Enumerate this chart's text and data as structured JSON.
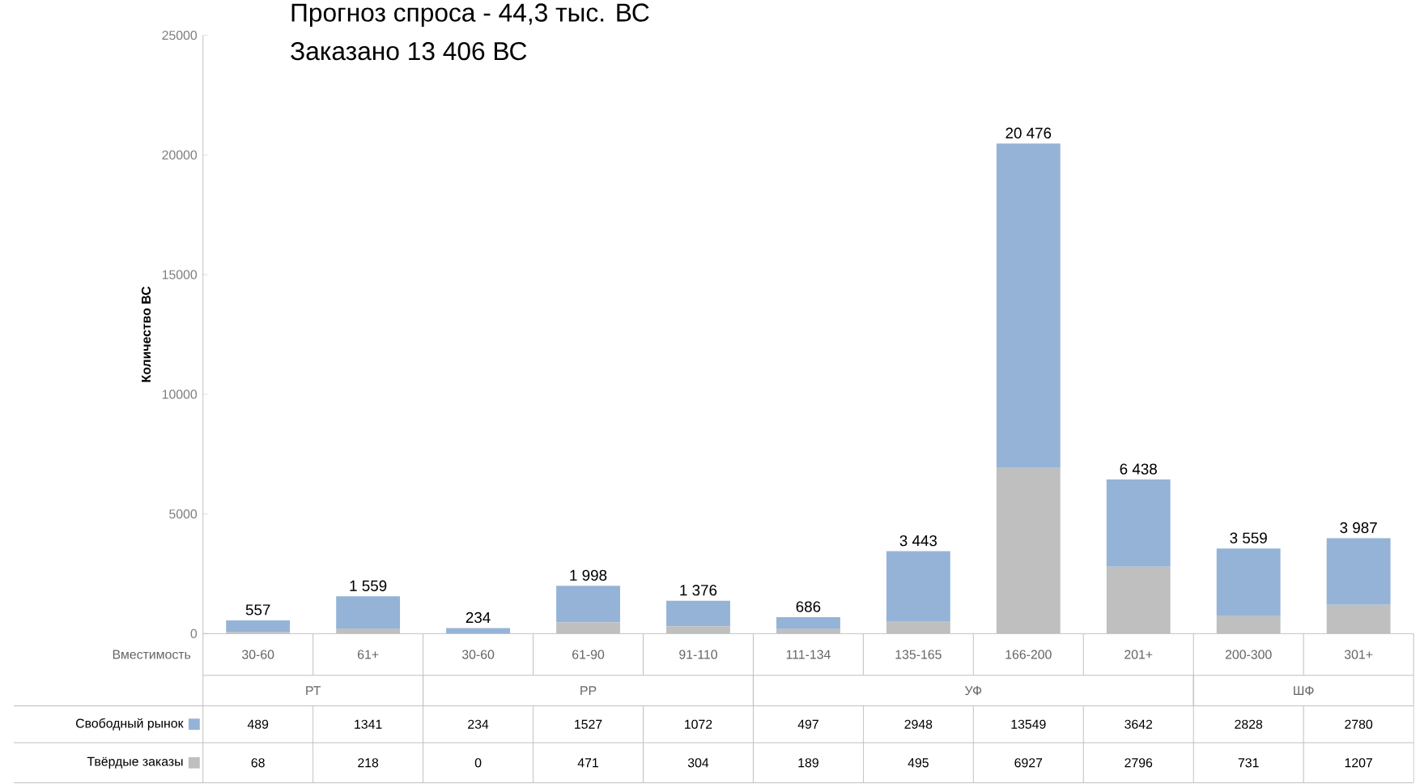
{
  "chart_data": {
    "type": "bar",
    "stacked": true,
    "title": "Прогноз спроса  - 44,3 тыс. ВС",
    "subtitle": "Заказано 13 406 ВС",
    "ylabel": "Количество ВС",
    "xlabel": "Вместимость",
    "categories": [
      "30-60",
      "61+",
      "30-60",
      "61-90",
      "91-110",
      "111-134",
      "135-165",
      "166-200",
      "201+",
      "200-300",
      "301+"
    ],
    "annotations": [
      "РТ",
      "РР",
      "УФ",
      "ШФ"
    ],
    "series": [
      {
        "name": "Твёрдые заказы",
        "color": "#bfbfbf",
        "values": [
          68,
          218,
          0,
          471,
          304,
          189,
          495,
          6927,
          2796,
          731,
          1207
        ]
      },
      {
        "name": "Свободный рынок",
        "color": "#95b3d7",
        "values": [
          489,
          1341,
          234,
          1527,
          1072,
          497,
          2948,
          13549,
          3642,
          2828,
          2780
        ]
      }
    ],
    "totals": [
      "557",
      "1 559",
      "234",
      "1 998",
      "1 376",
      "686",
      "3 443",
      "20 476",
      "6 438",
      "3 559",
      "3 987"
    ],
    "data_labels": true,
    "legend": "bottom left",
    "ylim": [
      0,
      25000
    ],
    "yticks": [
      0,
      5000,
      10000,
      15000,
      20000,
      25000
    ]
  }
}
